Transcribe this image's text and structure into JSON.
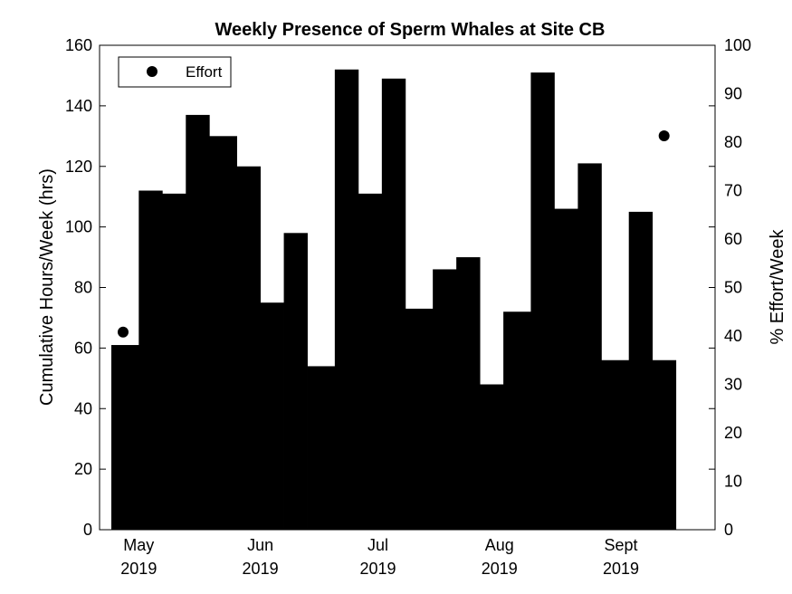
{
  "chart_data": {
    "type": "bar",
    "title": "Weekly Presence of Sperm Whales at Site CB",
    "ylabel": "Cumulative Hours/Week (hrs)",
    "y2label": "% Effort/Week",
    "ylim": [
      0,
      160
    ],
    "y2lim": [
      0,
      100
    ],
    "yticks": [
      0,
      20,
      40,
      60,
      80,
      100,
      120,
      140,
      160
    ],
    "y2ticks": [
      0,
      10,
      20,
      30,
      40,
      50,
      60,
      70,
      80,
      90,
      100
    ],
    "xlim": [
      "2019-04-21",
      "2019-09-25"
    ],
    "xticks": [
      {
        "date": "2019-05-01",
        "month": "May",
        "year": "2019"
      },
      {
        "date": "2019-06-01",
        "month": "Jun",
        "year": "2019"
      },
      {
        "date": "2019-07-01",
        "month": "Jul",
        "year": "2019"
      },
      {
        "date": "2019-08-01",
        "month": "Aug",
        "year": "2019"
      },
      {
        "date": "2019-09-01",
        "month": "Sept",
        "year": "2019"
      }
    ],
    "bar_color": "#000000",
    "weeks": [
      {
        "start": "2019-04-24",
        "hours": 61
      },
      {
        "start": "2019-05-01",
        "hours": 112
      },
      {
        "start": "2019-05-07",
        "hours": 111
      },
      {
        "start": "2019-05-13",
        "hours": 137
      },
      {
        "start": "2019-05-19",
        "hours": 130
      },
      {
        "start": "2019-05-26",
        "hours": 120
      },
      {
        "start": "2019-06-01",
        "hours": 75
      },
      {
        "start": "2019-06-07",
        "hours": 98
      },
      {
        "start": "2019-06-13",
        "hours": 54
      },
      {
        "start": "2019-06-20",
        "hours": 152
      },
      {
        "start": "2019-06-26",
        "hours": 111
      },
      {
        "start": "2019-07-02",
        "hours": 149
      },
      {
        "start": "2019-07-08",
        "hours": 73
      },
      {
        "start": "2019-07-15",
        "hours": 86
      },
      {
        "start": "2019-07-21",
        "hours": 90
      },
      {
        "start": "2019-07-27",
        "hours": 48
      },
      {
        "start": "2019-08-02",
        "hours": 72
      },
      {
        "start": "2019-08-09",
        "hours": 151
      },
      {
        "start": "2019-08-15",
        "hours": 106
      },
      {
        "start": "2019-08-21",
        "hours": 121
      },
      {
        "start": "2019-08-27",
        "hours": 56
      },
      {
        "start": "2019-09-03",
        "hours": 105
      },
      {
        "start": "2019-09-09",
        "hours": 56
      }
    ],
    "week_end": "2019-09-15",
    "effort_series": {
      "name": "Effort",
      "points": [
        {
          "date": "2019-04-27",
          "percent": 40.8
        },
        {
          "date": "2019-09-12",
          "percent": 81.3
        }
      ]
    },
    "legend_position": "top-left"
  }
}
